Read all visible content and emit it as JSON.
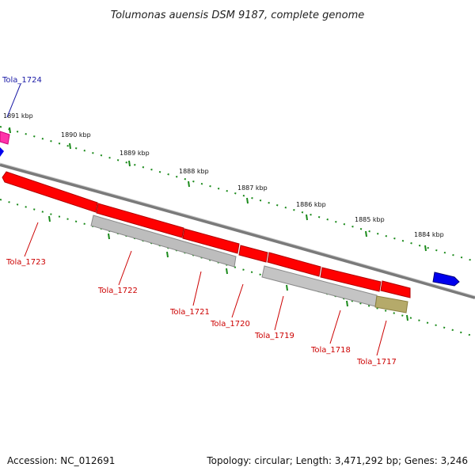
{
  "title": "Tolumonas auensis DSM 9187, complete genome",
  "accession": "Accession: NC_012691",
  "topology": "Topology: circular; Length: 3,471,292 bp; Genes: 3,246",
  "scale_labels": [
    "1891 kbp",
    "1890 kbp",
    "1889 kbp",
    "1888 kbp",
    "1887 kbp",
    "1886 kbp",
    "1885 kbp",
    "1884 kbp"
  ],
  "genes": [
    {
      "label": "Tola_1724",
      "color": "#1a1aa6"
    },
    {
      "label": "Tola_1723",
      "color": "#cc0000"
    },
    {
      "label": "Tola_1722",
      "color": "#cc0000"
    },
    {
      "label": "Tola_1721",
      "color": "#cc0000"
    },
    {
      "label": "Tola_1720",
      "color": "#cc0000"
    },
    {
      "label": "Tola_1719",
      "color": "#cc0000"
    },
    {
      "label": "Tola_1718",
      "color": "#cc0000"
    },
    {
      "label": "Tola_1717",
      "color": "#cc0000"
    }
  ],
  "colors": {
    "backbone": "#7a7a7a",
    "tick_green": "#1a8a1a",
    "cds_red": "#ff0000",
    "rna_grey": "#bdbdbd",
    "rna_olive": "#b5aa6a",
    "pink": "#ff33aa",
    "blue": "#0000ee"
  }
}
